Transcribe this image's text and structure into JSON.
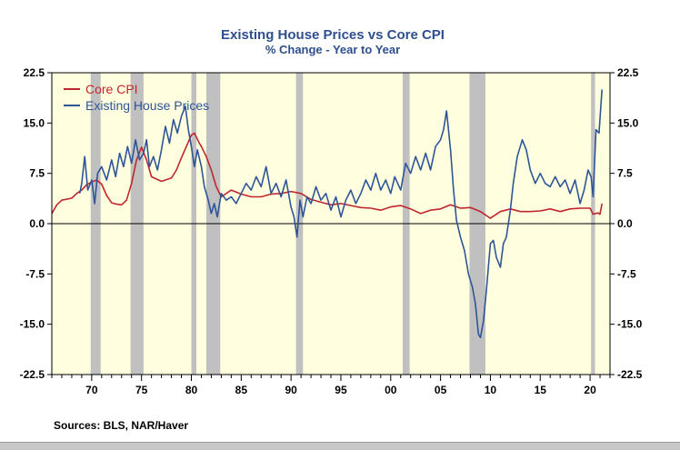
{
  "source_note": "Sources:  BLS, NAR/Haver",
  "colors": {
    "core_cpi": "#c0262d",
    "house_prices": "#2e5597",
    "plot_bg": "#ffffe0",
    "recession": "#c0c0c0",
    "title": "#2e4f8f"
  },
  "chart_data": {
    "type": "line",
    "title": "Existing House Prices vs Core CPI",
    "subtitle": "% Change - Year to Year",
    "xlim": [
      1966,
      2022
    ],
    "ylim": [
      -22.5,
      22.5
    ],
    "y_ticks": [
      22.5,
      15.0,
      7.5,
      0.0,
      -7.5,
      -15.0,
      -22.5
    ],
    "y_tick_labels": [
      "22.5",
      "15.0",
      "7.5",
      "0.0",
      "-7.5",
      "-15.0",
      "-22.5"
    ],
    "x_ticks": [
      1970,
      1975,
      1980,
      1985,
      1990,
      1995,
      2000,
      2005,
      2010,
      2015,
      2020
    ],
    "x_tick_labels": [
      "70",
      "75",
      "80",
      "85",
      "90",
      "95",
      "00",
      "05",
      "10",
      "15",
      "20"
    ],
    "legend_position": "top-left",
    "grid": false,
    "zero_line": true,
    "recessions": [
      [
        1969.9,
        1970.9
      ],
      [
        1973.9,
        1975.2
      ],
      [
        1980.0,
        1980.5
      ],
      [
        1981.5,
        1982.9
      ],
      [
        1990.5,
        1991.2
      ],
      [
        2001.2,
        2001.9
      ],
      [
        2007.9,
        2009.5
      ],
      [
        2020.1,
        2020.5
      ]
    ],
    "series": [
      {
        "name": "Core CPI",
        "color": "#c0262d",
        "points": [
          [
            1966,
            1.5
          ],
          [
            1966.5,
            2.8
          ],
          [
            1967,
            3.5
          ],
          [
            1968,
            3.8
          ],
          [
            1968.5,
            4.5
          ],
          [
            1969,
            5.0
          ],
          [
            1969.5,
            5.8
          ],
          [
            1970,
            6.2
          ],
          [
            1970.5,
            6.5
          ],
          [
            1971,
            5.9
          ],
          [
            1971.5,
            4.2
          ],
          [
            1972,
            3.1
          ],
          [
            1972.5,
            2.9
          ],
          [
            1973,
            2.8
          ],
          [
            1973.5,
            3.5
          ],
          [
            1974,
            6.0
          ],
          [
            1974.5,
            9.5
          ],
          [
            1975,
            11.4
          ],
          [
            1975.5,
            9.5
          ],
          [
            1976,
            7.0
          ],
          [
            1977,
            6.3
          ],
          [
            1978,
            6.8
          ],
          [
            1978.5,
            8.0
          ],
          [
            1979,
            9.8
          ],
          [
            1979.5,
            11.5
          ],
          [
            1980,
            13.2
          ],
          [
            1980.3,
            13.5
          ],
          [
            1980.8,
            12.0
          ],
          [
            1981,
            11.5
          ],
          [
            1981.5,
            10.0
          ],
          [
            1982,
            8.0
          ],
          [
            1982.5,
            5.5
          ],
          [
            1983,
            4.0
          ],
          [
            1984,
            5.0
          ],
          [
            1985,
            4.4
          ],
          [
            1986,
            4.0
          ],
          [
            1987,
            4.0
          ],
          [
            1988,
            4.4
          ],
          [
            1989,
            4.5
          ],
          [
            1990,
            4.8
          ],
          [
            1991,
            4.5
          ],
          [
            1992,
            3.6
          ],
          [
            1993,
            3.2
          ],
          [
            1994,
            2.8
          ],
          [
            1995,
            3.0
          ],
          [
            1996,
            2.7
          ],
          [
            1997,
            2.4
          ],
          [
            1998,
            2.3
          ],
          [
            1999,
            2.0
          ],
          [
            2000,
            2.5
          ],
          [
            2001,
            2.7
          ],
          [
            2002,
            2.2
          ],
          [
            2003,
            1.5
          ],
          [
            2004,
            2.0
          ],
          [
            2005,
            2.2
          ],
          [
            2006,
            2.8
          ],
          [
            2007,
            2.3
          ],
          [
            2008,
            2.4
          ],
          [
            2009,
            1.8
          ],
          [
            2010,
            0.8
          ],
          [
            2011,
            1.8
          ],
          [
            2012,
            2.2
          ],
          [
            2013,
            1.8
          ],
          [
            2014,
            1.8
          ],
          [
            2015,
            1.9
          ],
          [
            2016,
            2.2
          ],
          [
            2017,
            1.8
          ],
          [
            2018,
            2.2
          ],
          [
            2019,
            2.3
          ],
          [
            2020,
            2.3
          ],
          [
            2020.3,
            1.4
          ],
          [
            2020.8,
            1.6
          ],
          [
            2021,
            1.4
          ],
          [
            2021.2,
            3.0
          ]
        ]
      },
      {
        "name": "Existing House Prices",
        "color": "#2e5597",
        "points": [
          [
            1968.8,
            4.5
          ],
          [
            1969,
            6.0
          ],
          [
            1969.3,
            10.0
          ],
          [
            1969.6,
            5.0
          ],
          [
            1970,
            6.5
          ],
          [
            1970.3,
            3.0
          ],
          [
            1970.6,
            7.5
          ],
          [
            1971,
            8.5
          ],
          [
            1971.5,
            6.5
          ],
          [
            1972,
            9.5
          ],
          [
            1972.4,
            7.0
          ],
          [
            1972.8,
            10.5
          ],
          [
            1973.2,
            8.5
          ],
          [
            1973.6,
            11.5
          ],
          [
            1974,
            9.0
          ],
          [
            1974.4,
            12.5
          ],
          [
            1974.8,
            9.5
          ],
          [
            1975.2,
            10.5
          ],
          [
            1975.5,
            12.5
          ],
          [
            1975.8,
            8.5
          ],
          [
            1976.2,
            10.0
          ],
          [
            1976.6,
            8.0
          ],
          [
            1977,
            11.0
          ],
          [
            1977.4,
            14.5
          ],
          [
            1977.8,
            12.0
          ],
          [
            1978.2,
            15.5
          ],
          [
            1978.6,
            13.5
          ],
          [
            1979,
            16.0
          ],
          [
            1979.4,
            17.5
          ],
          [
            1979.7,
            14.0
          ],
          [
            1980,
            11.5
          ],
          [
            1980.3,
            8.5
          ],
          [
            1980.6,
            11.0
          ],
          [
            1981,
            8.5
          ],
          [
            1981.3,
            5.5
          ],
          [
            1981.7,
            3.5
          ],
          [
            1982,
            1.5
          ],
          [
            1982.3,
            3.0
          ],
          [
            1982.6,
            1.0
          ],
          [
            1983,
            4.5
          ],
          [
            1983.5,
            3.5
          ],
          [
            1984,
            4.0
          ],
          [
            1984.5,
            3.0
          ],
          [
            1985,
            4.5
          ],
          [
            1985.5,
            6.0
          ],
          [
            1986,
            5.0
          ],
          [
            1986.5,
            7.0
          ],
          [
            1987,
            5.5
          ],
          [
            1987.5,
            8.5
          ],
          [
            1988,
            4.5
          ],
          [
            1988.5,
            6.0
          ],
          [
            1989,
            4.0
          ],
          [
            1989.5,
            6.5
          ],
          [
            1990,
            2.5
          ],
          [
            1990.3,
            1.0
          ],
          [
            1990.6,
            -2.0
          ],
          [
            1990.9,
            3.5
          ],
          [
            1991.2,
            1.0
          ],
          [
            1991.6,
            4.0
          ],
          [
            1992,
            3.0
          ],
          [
            1992.5,
            5.5
          ],
          [
            1993,
            3.5
          ],
          [
            1993.5,
            4.5
          ],
          [
            1994,
            2.0
          ],
          [
            1994.5,
            4.0
          ],
          [
            1995,
            1.0
          ],
          [
            1995.5,
            3.5
          ],
          [
            1996,
            5.0
          ],
          [
            1996.5,
            3.0
          ],
          [
            1997,
            4.5
          ],
          [
            1997.5,
            6.5
          ],
          [
            1998,
            5.0
          ],
          [
            1998.5,
            7.5
          ],
          [
            1999,
            5.0
          ],
          [
            1999.5,
            6.5
          ],
          [
            2000,
            4.5
          ],
          [
            2000.4,
            7.0
          ],
          [
            2001,
            5.0
          ],
          [
            2001.5,
            9.0
          ],
          [
            2002,
            7.5
          ],
          [
            2002.5,
            10.0
          ],
          [
            2003,
            8.0
          ],
          [
            2003.5,
            10.5
          ],
          [
            2004,
            8.0
          ],
          [
            2004.5,
            11.5
          ],
          [
            2005,
            12.5
          ],
          [
            2005.3,
            14.0
          ],
          [
            2005.6,
            16.8
          ],
          [
            2006,
            11.0
          ],
          [
            2006.3,
            5.0
          ],
          [
            2006.6,
            0.5
          ],
          [
            2007,
            -2.0
          ],
          [
            2007.4,
            -4.0
          ],
          [
            2007.8,
            -7.5
          ],
          [
            2008.2,
            -9.5
          ],
          [
            2008.5,
            -12.0
          ],
          [
            2008.8,
            -16.5
          ],
          [
            2009,
            -17.0
          ],
          [
            2009.3,
            -14.5
          ],
          [
            2009.6,
            -10.0
          ],
          [
            2010,
            -3.0
          ],
          [
            2010.3,
            -2.5
          ],
          [
            2010.6,
            -5.0
          ],
          [
            2011,
            -6.5
          ],
          [
            2011.3,
            -3.0
          ],
          [
            2011.6,
            -2.0
          ],
          [
            2012,
            2.0
          ],
          [
            2012.3,
            6.0
          ],
          [
            2012.7,
            10.0
          ],
          [
            2013.2,
            12.5
          ],
          [
            2013.6,
            11.0
          ],
          [
            2014,
            8.0
          ],
          [
            2014.5,
            6.0
          ],
          [
            2015,
            7.5
          ],
          [
            2015.5,
            6.0
          ],
          [
            2016,
            5.5
          ],
          [
            2016.5,
            7.0
          ],
          [
            2017,
            5.5
          ],
          [
            2017.5,
            6.5
          ],
          [
            2018,
            4.5
          ],
          [
            2018.5,
            6.5
          ],
          [
            2019,
            3.0
          ],
          [
            2019.4,
            5.0
          ],
          [
            2019.8,
            8.0
          ],
          [
            2020.1,
            7.0
          ],
          [
            2020.3,
            4.0
          ],
          [
            2020.6,
            14.0
          ],
          [
            2020.9,
            13.5
          ],
          [
            2021.2,
            20.0
          ]
        ]
      }
    ]
  }
}
